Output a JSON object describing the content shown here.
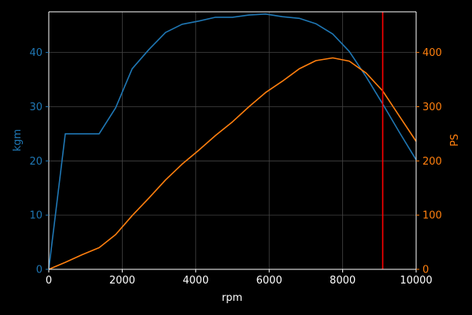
{
  "chart_data": {
    "type": "line",
    "background": "#000000",
    "xlabel": "rpm",
    "ylabel_left": "kgm",
    "ylabel_right": "PS",
    "xlim": [
      0,
      10000
    ],
    "ylim_left": [
      0,
      47.5
    ],
    "ylim_right": [
      0,
      475
    ],
    "x_ticks": [
      0,
      2000,
      4000,
      6000,
      8000,
      10000
    ],
    "x_tick_labels": [
      "0",
      "2000",
      "4000",
      "6000",
      "8000",
      "10000"
    ],
    "y_left_ticks": [
      0,
      10,
      20,
      30,
      40
    ],
    "y_left_tick_labels": [
      "0",
      "10",
      "20",
      "30",
      "40"
    ],
    "y_right_ticks": [
      0,
      100,
      200,
      300,
      400
    ],
    "y_right_tick_labels": [
      "0",
      "100",
      "200",
      "300",
      "400"
    ],
    "grid": true,
    "series": [
      {
        "axis": "left",
        "color": "#1f77b4",
        "x": [
          0,
          450,
          1370,
          1820,
          2270,
          2720,
          3180,
          3630,
          4090,
          4540,
          5000,
          5450,
          5900,
          6360,
          6820,
          7270,
          7730,
          8180,
          8640,
          9090,
          9550,
          10000
        ],
        "y": [
          0,
          25,
          25,
          29.8,
          37,
          40.5,
          43.7,
          45.2,
          45.8,
          46.5,
          46.5,
          46.9,
          47.1,
          46.6,
          46.3,
          45.3,
          43.4,
          40.2,
          35.5,
          30.5,
          25.2,
          20.2
        ]
      },
      {
        "axis": "right",
        "color": "#ff7f0e",
        "x": [
          0,
          450,
          910,
          1370,
          1820,
          2270,
          2720,
          3180,
          3630,
          4090,
          4540,
          5000,
          5450,
          5900,
          6360,
          6820,
          7270,
          7730,
          8180,
          8640,
          9090,
          9550,
          10000
        ],
        "y": [
          0,
          13,
          27,
          40,
          64,
          99,
          131,
          165,
          194,
          220,
          247,
          272,
          300,
          326,
          347,
          370,
          385,
          390,
          384,
          362,
          329,
          282,
          236
        ]
      }
    ],
    "vertical_line": {
      "x": 9090,
      "color": "#ff0000"
    },
    "axis_colors": {
      "left": "#1f77b4",
      "right": "#ff7f0e",
      "x": "#ffffff"
    }
  }
}
